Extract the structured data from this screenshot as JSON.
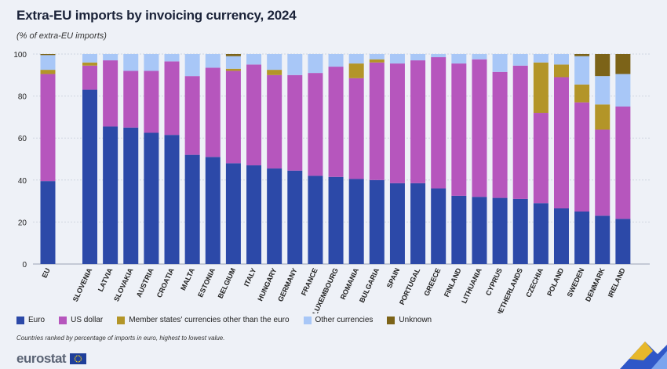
{
  "title": "Extra-EU imports by invoicing currency, 2024",
  "subtitle": "(% of extra-EU imports)",
  "note": "Countries ranked by percentage of imports in euro, highest to lowest value.",
  "logo_text": "eurostat",
  "legend": [
    {
      "label": "Euro",
      "color": "#2c49a8"
    },
    {
      "label": "US dollar",
      "color": "#b656bd"
    },
    {
      "label": "Member states' currencies other than the euro",
      "color": "#b39528"
    },
    {
      "label": "Other currencies",
      "color": "#a8c7f7"
    },
    {
      "label": "Unknown",
      "color": "#7c6318"
    }
  ],
  "chart_data": {
    "type": "bar",
    "stacked": true,
    "title": "Extra-EU imports by invoicing currency, 2024",
    "ylabel": "% of extra-EU imports",
    "ylim": [
      0,
      100
    ],
    "yticks": [
      0,
      20,
      40,
      60,
      80,
      100
    ],
    "grid": true,
    "categories": [
      "EU",
      "SLOVENIA",
      "LATVIA",
      "SLOVAKIA",
      "AUSTRIA",
      "CROATIA",
      "MALTA",
      "ESTONIA",
      "BELGIUM",
      "ITALY",
      "HUNGARY",
      "GERMANY",
      "FRANCE",
      "LUXEMBOURG",
      "ROMANIA",
      "BULGARIA",
      "SPAIN",
      "PORTUGAL",
      "GREECE",
      "FINLAND",
      "LITHUANIA",
      "CYPRUS",
      "NETHERLANDS",
      "CZECHIA",
      "POLAND",
      "SWEDEN",
      "DENMARK",
      "IRELAND"
    ],
    "series": [
      {
        "name": "Euro",
        "values": [
          39.5,
          83,
          65.5,
          65,
          62.5,
          61.5,
          52,
          51,
          48,
          47,
          45.5,
          44.5,
          42,
          41.5,
          40.5,
          40,
          38.5,
          38.5,
          36,
          32.5,
          32,
          31.5,
          31,
          29,
          26.5,
          25,
          23,
          21.5
        ]
      },
      {
        "name": "US dollar",
        "values": [
          51,
          11.5,
          31.5,
          27,
          29.5,
          35,
          37.5,
          42.5,
          44,
          48,
          44.5,
          45.5,
          49,
          52.5,
          48,
          56,
          57,
          58.5,
          62.5,
          63,
          65.5,
          60,
          63.5,
          43,
          62.5,
          52,
          41,
          53.5
        ]
      },
      {
        "name": "Member states' currencies other than the euro",
        "values": [
          2,
          1.5,
          0,
          0,
          0,
          0,
          0,
          0,
          1,
          0,
          2.5,
          0,
          0,
          0,
          7,
          1.5,
          0,
          0,
          0,
          0,
          0,
          0,
          0,
          24,
          6,
          8.5,
          12,
          0
        ]
      },
      {
        "name": "Other currencies",
        "values": [
          7,
          4,
          3,
          8,
          8,
          3.5,
          10.5,
          6.5,
          6,
          5,
          7.5,
          10,
          9,
          6,
          4.5,
          2.5,
          4.5,
          3,
          1.5,
          4.5,
          2.5,
          8.5,
          5.5,
          4,
          5,
          13.5,
          13.5,
          15.5
        ]
      },
      {
        "name": "Unknown",
        "values": [
          0.5,
          0,
          0,
          0,
          0,
          0,
          0,
          0,
          1,
          0,
          0,
          0,
          0,
          0,
          0,
          0,
          0,
          0,
          0,
          0,
          0,
          0,
          0,
          0,
          0,
          1,
          10.5,
          9.5
        ]
      }
    ]
  }
}
